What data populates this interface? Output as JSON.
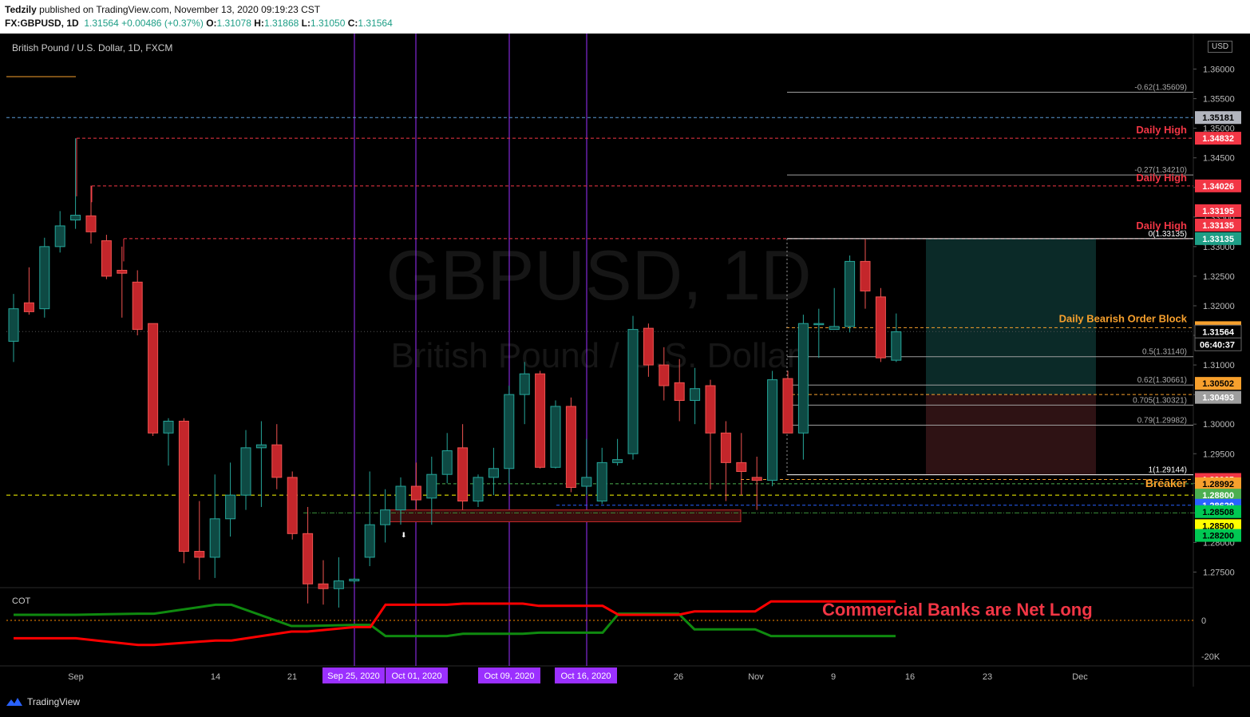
{
  "header": {
    "author": "Tedzily",
    "published_text": "published on TradingView.com, November 13, 2020 09:19:23 CST",
    "symbol": "FX:GBPUSD, 1D",
    "last": "1.31564",
    "change": "+0.00486 (+0.37%)",
    "o_label": "O:",
    "o_value": "1.31078",
    "h_label": "H:",
    "h_value": "1.31868",
    "l_label": "L:",
    "l_value": "1.31050",
    "c_label": "C:",
    "c_value": "1.31564"
  },
  "pane": {
    "title": "British Pound / U.S. Dollar, 1D, FXCM",
    "currency": "USD",
    "watermark_symbol": "GBPUSD, 1D",
    "watermark_name": "British Pound / U.S. Dollar",
    "cot_label": "COT",
    "cot_annotation": "Commercial Banks are Net Long"
  },
  "footer": {
    "brand": "TradingView"
  },
  "colors": {
    "up": "#26a69a",
    "down": "#ef5350",
    "up_fill": "#0e4a44",
    "down_fill": "#c4262b",
    "orange": "#f7a02d",
    "red_label": "#f23645",
    "purple": "#9b30ff",
    "grid_text": "#bbb"
  },
  "chart_data": {
    "type": "candlestick",
    "ylim": [
      1.27,
      1.36
    ],
    "y_ticks": [
      "1.36000",
      "1.35500",
      "1.35000",
      "1.34500",
      "1.34000",
      "1.33500",
      "1.33000",
      "1.32500",
      "1.32000",
      "1.31500",
      "1.31000",
      "1.30500",
      "1.30000",
      "1.29500",
      "1.29000",
      "1.28500",
      "1.28000",
      "1.27500"
    ],
    "x_ticks": [
      "Sep",
      "14",
      "21",
      "Sep 25, 2020",
      "Oct 01, 2020",
      "Oct 09, 2020",
      "Oct 16, 2020",
      "26",
      "Nov",
      "9",
      "16",
      "23",
      "Dec"
    ],
    "candles": [
      {
        "o": 1.314,
        "h": 1.322,
        "l": 1.3105,
        "c": 1.3195
      },
      {
        "o": 1.3205,
        "h": 1.3265,
        "l": 1.3185,
        "c": 1.319
      },
      {
        "o": 1.3195,
        "h": 1.3315,
        "l": 1.318,
        "c": 1.33
      },
      {
        "o": 1.33,
        "h": 1.336,
        "l": 1.329,
        "c": 1.3335
      },
      {
        "o": 1.3345,
        "h": 1.3483,
        "l": 1.333,
        "c": 1.3353
      },
      {
        "o": 1.3352,
        "h": 1.3403,
        "l": 1.3305,
        "c": 1.3325
      },
      {
        "o": 1.331,
        "h": 1.332,
        "l": 1.3245,
        "c": 1.325
      },
      {
        "o": 1.326,
        "h": 1.33,
        "l": 1.318,
        "c": 1.3255
      },
      {
        "o": 1.324,
        "h": 1.326,
        "l": 1.315,
        "c": 1.316
      },
      {
        "o": 1.317,
        "h": 1.317,
        "l": 1.298,
        "c": 1.2985
      },
      {
        "o": 1.2985,
        "h": 1.301,
        "l": 1.293,
        "c": 1.3005
      },
      {
        "o": 1.3005,
        "h": 1.301,
        "l": 1.2765,
        "c": 1.2785
      },
      {
        "o": 1.2785,
        "h": 1.287,
        "l": 1.2737,
        "c": 1.2775
      },
      {
        "o": 1.2775,
        "h": 1.2915,
        "l": 1.274,
        "c": 1.284
      },
      {
        "o": 1.284,
        "h": 1.2935,
        "l": 1.281,
        "c": 1.288
      },
      {
        "o": 1.288,
        "h": 1.299,
        "l": 1.2855,
        "c": 1.296
      },
      {
        "o": 1.296,
        "h": 1.3005,
        "l": 1.286,
        "c": 1.2965
      },
      {
        "o": 1.2965,
        "h": 1.3,
        "l": 1.289,
        "c": 1.291
      },
      {
        "o": 1.291,
        "h": 1.292,
        "l": 1.2805,
        "c": 1.2815
      },
      {
        "o": 1.2815,
        "h": 1.286,
        "l": 1.2697,
        "c": 1.273
      },
      {
        "o": 1.273,
        "h": 1.277,
        "l": 1.2695,
        "c": 1.2722
      },
      {
        "o": 1.2722,
        "h": 1.2775,
        "l": 1.269,
        "c": 1.2735
      },
      {
        "o": 1.2735,
        "h": 1.274,
        "l": 1.273,
        "c": 1.2738
      },
      {
        "o": 1.2775,
        "h": 1.292,
        "l": 1.276,
        "c": 1.283
      },
      {
        "o": 1.283,
        "h": 1.289,
        "l": 1.28,
        "c": 1.2855
      },
      {
        "o": 1.2855,
        "h": 1.291,
        "l": 1.283,
        "c": 1.2895
      },
      {
        "o": 1.2895,
        "h": 1.2935,
        "l": 1.2855,
        "c": 1.2872
      },
      {
        "o": 1.2875,
        "h": 1.2945,
        "l": 1.283,
        "c": 1.2915
      },
      {
        "o": 1.2915,
        "h": 1.2985,
        "l": 1.29,
        "c": 1.2955
      },
      {
        "o": 1.296,
        "h": 1.3,
        "l": 1.2855,
        "c": 1.287
      },
      {
        "o": 1.287,
        "h": 1.2915,
        "l": 1.286,
        "c": 1.291
      },
      {
        "o": 1.291,
        "h": 1.296,
        "l": 1.288,
        "c": 1.2925
      },
      {
        "o": 1.2925,
        "h": 1.3065,
        "l": 1.29,
        "c": 1.305
      },
      {
        "o": 1.305,
        "h": 1.3105,
        "l": 1.3,
        "c": 1.3085
      },
      {
        "o": 1.3085,
        "h": 1.309,
        "l": 1.2925,
        "c": 1.2927
      },
      {
        "o": 1.2927,
        "h": 1.304,
        "l": 1.2925,
        "c": 1.303
      },
      {
        "o": 1.303,
        "h": 1.3045,
        "l": 1.2885,
        "c": 1.2893
      },
      {
        "o": 1.2895,
        "h": 1.2975,
        "l": 1.288,
        "c": 1.291
      },
      {
        "o": 1.287,
        "h": 1.296,
        "l": 1.2865,
        "c": 1.2935
      },
      {
        "o": 1.2935,
        "h": 1.2975,
        "l": 1.293,
        "c": 1.294
      },
      {
        "o": 1.295,
        "h": 1.3183,
        "l": 1.294,
        "c": 1.316
      },
      {
        "o": 1.3162,
        "h": 1.317,
        "l": 1.308,
        "c": 1.31
      },
      {
        "o": 1.31,
        "h": 1.313,
        "l": 1.304,
        "c": 1.3065
      },
      {
        "o": 1.307,
        "h": 1.311,
        "l": 1.3005,
        "c": 1.304
      },
      {
        "o": 1.304,
        "h": 1.3095,
        "l": 1.3,
        "c": 1.306
      },
      {
        "o": 1.3065,
        "h": 1.3075,
        "l": 1.289,
        "c": 1.2985
      },
      {
        "o": 1.2985,
        "h": 1.3005,
        "l": 1.287,
        "c": 1.2935
      },
      {
        "o": 1.2935,
        "h": 1.2985,
        "l": 1.288,
        "c": 1.292
      },
      {
        "o": 1.291,
        "h": 1.2945,
        "l": 1.2855,
        "c": 1.2905
      },
      {
        "o": 1.2905,
        "h": 1.309,
        "l": 1.2895,
        "c": 1.3075
      },
      {
        "o": 1.3077,
        "h": 1.309,
        "l": 1.2985,
        "c": 1.2985
      },
      {
        "o": 1.2985,
        "h": 1.3185,
        "l": 1.294,
        "c": 1.317
      },
      {
        "o": 1.3168,
        "h": 1.3195,
        "l": 1.3112,
        "c": 1.317
      },
      {
        "o": 1.316,
        "h": 1.323,
        "l": 1.316,
        "c": 1.3165
      },
      {
        "o": 1.3165,
        "h": 1.3285,
        "l": 1.3155,
        "c": 1.3275
      },
      {
        "o": 1.3275,
        "h": 1.3313,
        "l": 1.3195,
        "c": 1.3225
      },
      {
        "o": 1.3215,
        "h": 1.323,
        "l": 1.3105,
        "c": 1.3112
      },
      {
        "o": 1.3108,
        "h": 1.3187,
        "l": 1.3105,
        "c": 1.3156
      }
    ],
    "horizontal_levels": [
      {
        "price": 1.35181,
        "label": "1.35181",
        "bg": "#b2b5be",
        "fg": "#000"
      },
      {
        "price": 1.34832,
        "label": "1.34832",
        "bg": "#f23645",
        "fg": "#fff",
        "text": "Daily High"
      },
      {
        "price": 1.34026,
        "label": "1.34026",
        "bg": "#f23645",
        "fg": "#fff",
        "text": "Daily High"
      },
      {
        "price": 1.33195,
        "label": "1.33195",
        "bg": "#f23645",
        "fg": "#fff"
      },
      {
        "price": 1.33135,
        "label": "1.33135",
        "bg": "#f23645",
        "fg": "#fff",
        "text": "Daily High"
      },
      {
        "price": 1.33135,
        "label": "1.33135",
        "bg": "#1e9e86",
        "fg": "#fff"
      },
      {
        "price": 1.3163,
        "label": "1.31630",
        "bg": "#f7a02d",
        "fg": "#000",
        "text": "Daily Bearish Order Block"
      },
      {
        "price": 1.31564,
        "label": "1.31564",
        "bg": "#000",
        "fg": "#fff"
      },
      {
        "price": 1.305,
        "label": "1.30502",
        "bg": "#f7a02d",
        "fg": "#000"
      },
      {
        "price": 1.30493,
        "label": "1.30493",
        "bg": "#9e9e9e",
        "fg": "#fff"
      },
      {
        "price": 1.29065,
        "label": "1.29065",
        "bg": "#f23645",
        "fg": "#fff"
      },
      {
        "price": 1.28992,
        "label": "1.28992",
        "bg": "#f7a02d",
        "fg": "#000",
        "text": "Breaker"
      },
      {
        "price": 1.288,
        "label": "1.28800",
        "bg": "#4caf50",
        "fg": "#fff"
      },
      {
        "price": 1.28629,
        "label": "1.28629",
        "bg": "#2962ff",
        "fg": "#fff"
      },
      {
        "price": 1.28508,
        "label": "1.28508",
        "bg": "#00c853",
        "fg": "#000"
      },
      {
        "price": 1.285,
        "label": "1.28500",
        "bg": "#ffff00",
        "fg": "#000"
      },
      {
        "price": 1.282,
        "label": "1.28200",
        "bg": "#00c853",
        "fg": "#000"
      }
    ],
    "countdown": "06:40:37",
    "fib_levels": [
      {
        "ratio": "-0.62(1.35609)",
        "price": 1.35609
      },
      {
        "ratio": "-0.27(1.34210)",
        "price": 1.3421
      },
      {
        "ratio": "0(1.33135)",
        "price": 1.33135
      },
      {
        "ratio": "0.5(1.31140)",
        "price": 1.3114
      },
      {
        "ratio": "0.62(1.30661)",
        "price": 1.30661
      },
      {
        "ratio": "0.705(1.30321)",
        "price": 1.30321
      },
      {
        "ratio": "0.79(1.29982)",
        "price": 1.29982
      },
      {
        "ratio": "1(1.29144)",
        "price": 1.29144
      }
    ],
    "cot": {
      "y_ticks": [
        "0",
        "-20K"
      ],
      "series": [
        {
          "name": "",
          "color": "#0f8a0f",
          "values": [
            5,
            5,
            6,
            6,
            14,
            14,
            -5,
            -5,
            -4,
            -4,
            -14,
            -14,
            -12,
            -12,
            -11,
            -11,
            6,
            6,
            -8,
            -8,
            -14,
            -14
          ]
        },
        {
          "name": "",
          "color": "#ff0000",
          "values": [
            -16,
            -16,
            -22,
            -22,
            -18,
            -18,
            -10,
            -10,
            -6,
            -6,
            14,
            14,
            15,
            15,
            13,
            13,
            5,
            5,
            8,
            8,
            17,
            17
          ]
        }
      ]
    },
    "date_labels": [
      "Sep 25, 2020",
      "Oct 01, 2020",
      "Oct 09, 2020",
      "Oct 16, 2020"
    ]
  }
}
